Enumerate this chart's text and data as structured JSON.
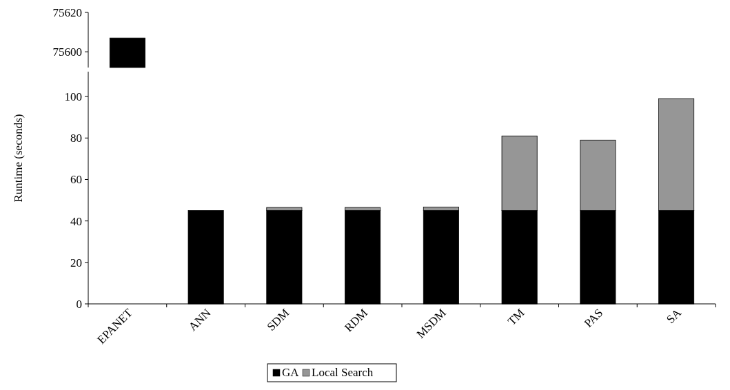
{
  "chart_data": [
    {
      "type": "bar",
      "categories": [
        "EPANET",
        "ANN",
        "SDM",
        "RDM",
        "MSDM",
        "TM",
        "PAS",
        "SA"
      ],
      "stacked": true,
      "series": [
        {
          "color": "#000000",
          "values": [
            75607,
            null,
            null,
            null,
            null,
            null,
            null,
            null
          ]
        }
      ],
      "ylim": [
        75592,
        75620
      ],
      "yticks": [
        75600,
        75620
      ],
      "tick_labels": "y",
      "grid": false,
      "legend": false
    },
    {
      "type": "bar",
      "categories": [
        "EPANET",
        "ANN",
        "SDM",
        "RDM",
        "MSDM",
        "TM",
        "PAS",
        "SA"
      ],
      "stacked": true,
      "ylabel": "Runtime (seconds)",
      "series": [
        {
          "name": "GA",
          "color": "#000000",
          "values": [
            null,
            45,
            45,
            45,
            45,
            45,
            45,
            45
          ]
        },
        {
          "name": "Local Search",
          "color": "#969696",
          "values": [
            null,
            0,
            1.5,
            1.5,
            1.7,
            36,
            34,
            54
          ]
        }
      ],
      "ylim": [
        0,
        112
      ],
      "yticks": [
        0,
        20,
        40,
        60,
        80,
        100
      ],
      "grid": false,
      "legend": "bottom"
    }
  ]
}
